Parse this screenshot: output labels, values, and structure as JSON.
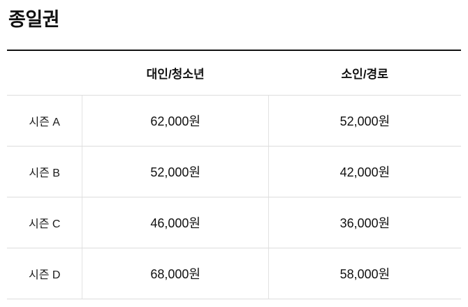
{
  "page": {
    "title": "종일권"
  },
  "table": {
    "headers": {
      "label": "",
      "adult": "대인/청소년",
      "child": "소인/경로"
    },
    "rows": [
      {
        "label": "시즌 A",
        "adult": "62,000원",
        "child": "52,000원"
      },
      {
        "label": "시즌 B",
        "adult": "52,000원",
        "child": "42,000원"
      },
      {
        "label": "시즌 C",
        "adult": "46,000원",
        "child": "36,000원"
      },
      {
        "label": "시즌 D",
        "adult": "68,000원",
        "child": "58,000원"
      }
    ]
  },
  "colors": {
    "text": "#111111",
    "top_border": "#111111",
    "divider": "#dddddd",
    "background": "#ffffff"
  }
}
